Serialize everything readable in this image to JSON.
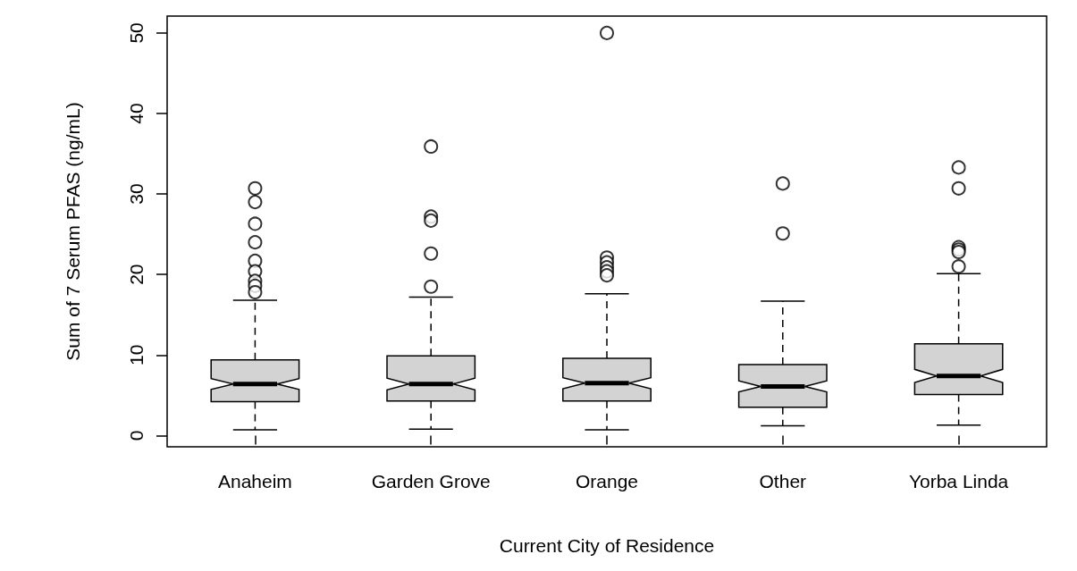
{
  "chart_data": {
    "type": "box",
    "xlabel": "Current City of Residence",
    "ylabel": "Sum of 7 Serum PFAS (ng/mL)",
    "categories": [
      "Anaheim",
      "Garden Grove",
      "Orange",
      "Other",
      "Yorba Linda"
    ],
    "ylim": [
      -1.4,
      52.1
    ],
    "yticks": [
      0,
      10,
      20,
      30,
      40,
      50
    ],
    "grid": false,
    "marker": "circle",
    "series": [
      {
        "color": "#d3d3d3",
        "boxes": [
          {
            "low": 0.7,
            "q1": 4.2,
            "median": 6.4,
            "q3": 9.4,
            "high": 16.8,
            "outliers": [
              30.7,
              29.0,
              26.3,
              24.0,
              21.7,
              20.4,
              19.2,
              18.6,
              17.8
            ]
          },
          {
            "low": 0.8,
            "q1": 4.3,
            "median": 6.4,
            "q3": 9.9,
            "high": 17.2,
            "outliers": [
              35.9,
              27.2,
              26.7,
              22.6,
              18.5
            ]
          },
          {
            "low": 0.7,
            "q1": 4.3,
            "median": 6.5,
            "q3": 9.6,
            "high": 17.6,
            "outliers": [
              50.0,
              22.1,
              21.5,
              20.9,
              20.4,
              19.9
            ]
          },
          {
            "low": 1.2,
            "q1": 3.5,
            "median": 6.1,
            "q3": 8.8,
            "high": 16.7,
            "outliers": [
              31.3,
              25.1
            ]
          },
          {
            "low": 1.3,
            "q1": 5.1,
            "median": 7.4,
            "q3": 11.4,
            "high": 20.1,
            "outliers": [
              33.3,
              30.7,
              23.4,
              23.1,
              22.8,
              21.0
            ]
          }
        ]
      }
    ]
  }
}
